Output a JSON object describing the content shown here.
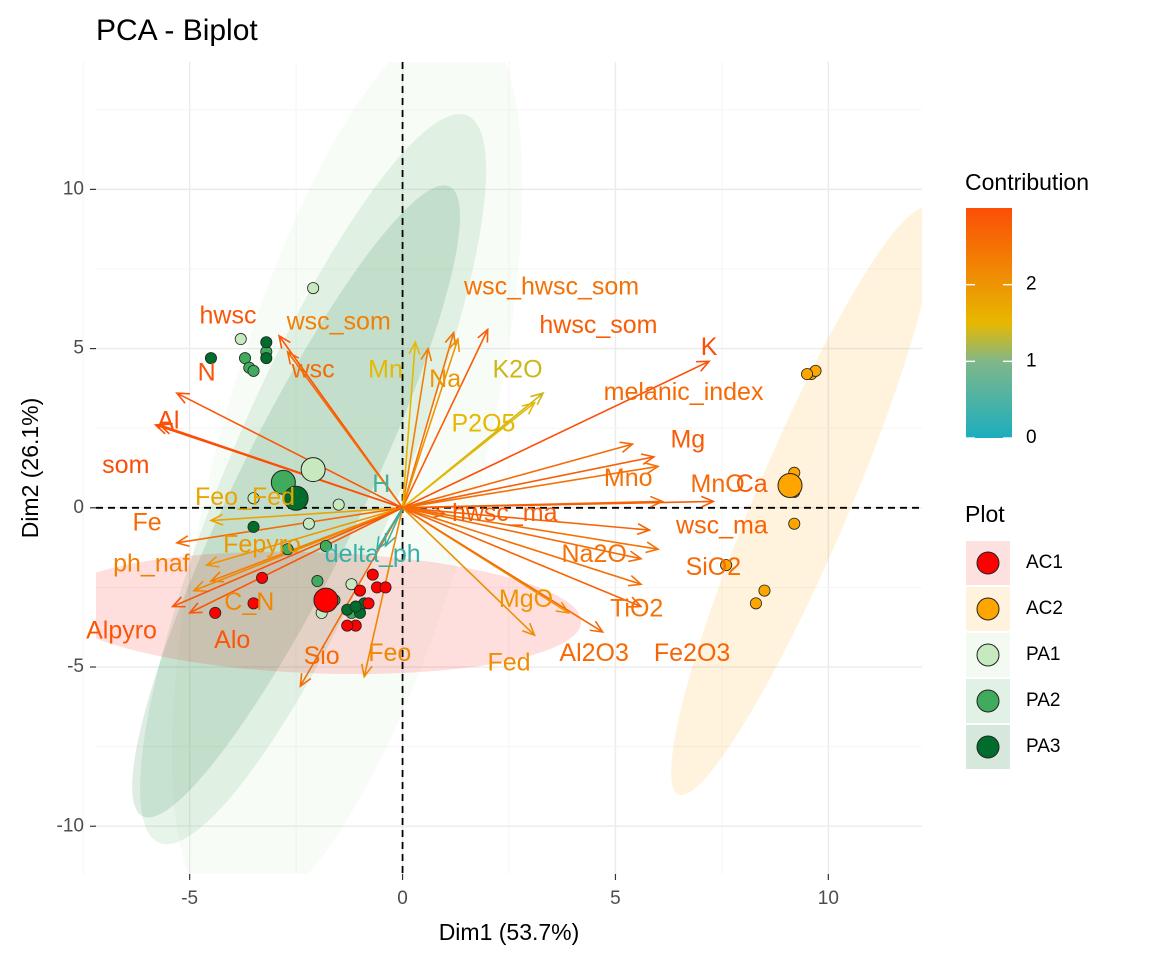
{
  "chart_data": {
    "type": "scatter",
    "title": "PCA - Biplot",
    "xlabel": "Dim1 (53.7%)",
    "ylabel": "Dim2 (26.1%)",
    "xlim": [
      -7.2,
      12.2
    ],
    "ylim": [
      -11.5,
      14
    ],
    "xticks": [
      -5,
      0,
      5,
      10
    ],
    "yticks": [
      -10,
      -5,
      0,
      5,
      10
    ],
    "grid": true,
    "legend_position": "right",
    "contribution_legend": {
      "title": "Contribution",
      "range": [
        0,
        3
      ],
      "ticks": [
        0,
        1,
        2
      ],
      "colors": [
        "#1BAEBF",
        "#E7B800",
        "#FC4E07"
      ]
    },
    "plot_legend": {
      "title": "Plot",
      "entries": [
        {
          "label": "AC1",
          "color": "#FF0000",
          "fill": "#FDE0E0"
        },
        {
          "label": "AC2",
          "color": "#FFA500",
          "fill": "#FFF3DD"
        },
        {
          "label": "PA1",
          "color": "#C7E9C0",
          "fill": "#F3FAF2"
        },
        {
          "label": "PA2",
          "color": "#41AB5D",
          "fill": "#E2F1E5"
        },
        {
          "label": "PA3",
          "color": "#006D2C",
          "fill": "#D6E8DC"
        }
      ]
    },
    "ellipses": [
      {
        "group": "PA1",
        "center": [
          -1.3,
          1.2
        ],
        "rx": 3.1,
        "ry": 14.6,
        "angle": 15
      },
      {
        "group": "PA2",
        "center": [
          -2.1,
          0.9
        ],
        "rx": 2.0,
        "ry": 12.4,
        "angle": 23
      },
      {
        "group": "PA3",
        "center": [
          -2.5,
          0.2
        ],
        "rx": 1.5,
        "ry": 11.0,
        "angle": 26
      },
      {
        "group": "AC1",
        "center": [
          -2.0,
          -3.3
        ],
        "rx": 6.2,
        "ry": 1.9,
        "angle": 2
      },
      {
        "group": "AC2",
        "center": [
          9.4,
          0.2
        ],
        "rx": 1.1,
        "ry": 10.0,
        "angle": 23
      }
    ],
    "points": [
      {
        "group": "PA1",
        "x": -2.1,
        "y": 6.9
      },
      {
        "group": "PA1",
        "x": -3.8,
        "y": 5.3
      },
      {
        "group": "PA1",
        "x": -1.5,
        "y": 0.1
      },
      {
        "group": "PA1",
        "x": -2.2,
        "y": -0.5
      },
      {
        "group": "PA1",
        "x": -1.2,
        "y": -2.4
      },
      {
        "group": "PA1",
        "x": -3.5,
        "y": 0.3
      },
      {
        "group": "PA1",
        "x": -1.9,
        "y": -3.3
      },
      {
        "group": "PA2",
        "x": -3.7,
        "y": 4.7
      },
      {
        "group": "PA2",
        "x": -3.6,
        "y": 4.4
      },
      {
        "group": "PA2",
        "x": -3.5,
        "y": 4.3
      },
      {
        "group": "PA2",
        "x": -3.2,
        "y": 4.9
      },
      {
        "group": "PA2",
        "x": -1.8,
        "y": -1.2
      },
      {
        "group": "PA2",
        "x": -2.0,
        "y": -2.3
      },
      {
        "group": "PA2",
        "x": -2.7,
        "y": -1.3
      },
      {
        "group": "PA2",
        "x": -1.6,
        "y": -2.9
      },
      {
        "group": "PA2",
        "x": -1.2,
        "y": -3.3
      },
      {
        "group": "PA3",
        "x": -4.5,
        "y": 4.7
      },
      {
        "group": "PA3",
        "x": -3.2,
        "y": 5.2
      },
      {
        "group": "PA3",
        "x": -3.2,
        "y": 4.7
      },
      {
        "group": "PA3",
        "x": -3.5,
        "y": -0.6
      },
      {
        "group": "PA3",
        "x": -1.3,
        "y": -3.2
      },
      {
        "group": "PA3",
        "x": -1.0,
        "y": -3.3
      },
      {
        "group": "PA3",
        "x": -0.9,
        "y": -3.0
      },
      {
        "group": "PA3",
        "x": -1.1,
        "y": -3.1
      },
      {
        "group": "AC1",
        "x": -4.4,
        "y": -3.3
      },
      {
        "group": "AC1",
        "x": -3.3,
        "y": -2.2
      },
      {
        "group": "AC1",
        "x": -3.5,
        "y": -3.0
      },
      {
        "group": "AC1",
        "x": -0.7,
        "y": -2.1
      },
      {
        "group": "AC1",
        "x": -0.6,
        "y": -2.5
      },
      {
        "group": "AC1",
        "x": -0.4,
        "y": -2.5
      },
      {
        "group": "AC1",
        "x": -0.8,
        "y": -3.0
      },
      {
        "group": "AC1",
        "x": -1.0,
        "y": -2.6
      },
      {
        "group": "AC1",
        "x": -1.1,
        "y": -3.7
      },
      {
        "group": "AC1",
        "x": -1.3,
        "y": -3.7
      },
      {
        "group": "AC2",
        "x": 9.6,
        "y": 4.2
      },
      {
        "group": "AC2",
        "x": 9.7,
        "y": 4.3
      },
      {
        "group": "AC2",
        "x": 9.5,
        "y": 4.2
      },
      {
        "group": "AC2",
        "x": 9.2,
        "y": 1.1
      },
      {
        "group": "AC2",
        "x": 9.2,
        "y": 0.5
      },
      {
        "group": "AC2",
        "x": 9.0,
        "y": 0.8
      },
      {
        "group": "AC2",
        "x": 9.2,
        "y": -0.5
      },
      {
        "group": "AC2",
        "x": 7.6,
        "y": -1.8
      },
      {
        "group": "AC2",
        "x": 8.5,
        "y": -2.6
      },
      {
        "group": "AC2",
        "x": 8.3,
        "y": -3.0
      }
    ],
    "centroids": [
      {
        "group": "PA1",
        "x": -2.1,
        "y": 1.2
      },
      {
        "group": "PA2",
        "x": -2.8,
        "y": 0.8
      },
      {
        "group": "PA3",
        "x": -2.5,
        "y": 0.3
      },
      {
        "group": "AC1",
        "x": -1.8,
        "y": -2.9
      },
      {
        "group": "AC2",
        "x": 9.1,
        "y": 0.7
      }
    ],
    "variables": [
      {
        "name": "wsc_hwsc_som",
        "x": 1.2,
        "y": 5.5,
        "contrib": 2.5,
        "lx": 3.5,
        "ly": 6.9
      },
      {
        "name": "hwsc_som",
        "x": 2.0,
        "y": 5.6,
        "contrib": 2.8,
        "lx": 4.6,
        "ly": 5.7
      },
      {
        "name": "wsc_som",
        "x": 0.6,
        "y": 5.0,
        "contrib": 2.3,
        "lx": -1.5,
        "ly": 5.8
      },
      {
        "name": "Mn",
        "x": 0.3,
        "y": 5.2,
        "contrib": 1.5,
        "lx": -0.4,
        "ly": 4.3
      },
      {
        "name": "Na",
        "x": 1.3,
        "y": 5.3,
        "contrib": 2.0,
        "lx": 1.0,
        "ly": 4.0
      },
      {
        "name": "K2O",
        "x": 3.3,
        "y": 3.6,
        "contrib": 1.3,
        "lx": 2.7,
        "ly": 4.3
      },
      {
        "name": "P2O5",
        "x": 3.1,
        "y": 3.3,
        "contrib": 1.5,
        "lx": 1.9,
        "ly": 2.6
      },
      {
        "name": "K",
        "x": 7.2,
        "y": 4.6,
        "contrib": 3.0,
        "lx": 7.2,
        "ly": 5.0
      },
      {
        "name": "melanic_index",
        "x": 5.4,
        "y": 2.0,
        "contrib": 2.6,
        "lx": 6.6,
        "ly": 3.6
      },
      {
        "name": "Mg",
        "x": 5.9,
        "y": 1.6,
        "contrib": 2.8,
        "lx": 6.7,
        "ly": 2.1
      },
      {
        "name": "Mno",
        "x": 6.0,
        "y": 1.3,
        "contrib": 2.5,
        "lx": 5.3,
        "ly": 0.9
      },
      {
        "name": "MnO",
        "x": 6.1,
        "y": 0.2,
        "contrib": 2.6,
        "lx": 7.4,
        "ly": 0.7
      },
      {
        "name": "Ca",
        "x": 7.3,
        "y": 0.2,
        "contrib": 2.8,
        "lx": 8.2,
        "ly": 0.7
      },
      {
        "name": "hwsc_ma",
        "x": 1.0,
        "y": -0.2,
        "contrib": 2.8,
        "lx": 2.4,
        "ly": -0.2
      },
      {
        "name": "wsc_ma",
        "x": 5.8,
        "y": -0.7,
        "contrib": 2.7,
        "lx": 7.5,
        "ly": -0.6
      },
      {
        "name": "Na2O",
        "x": 6.0,
        "y": -1.3,
        "contrib": 2.5,
        "lx": 4.5,
        "ly": -1.5
      },
      {
        "name": "SiO2",
        "x": 5.6,
        "y": -1.6,
        "contrib": 2.6,
        "lx": 7.3,
        "ly": -1.9
      },
      {
        "name": "TiO2",
        "x": 5.6,
        "y": -2.4,
        "contrib": 2.5,
        "lx": 5.5,
        "ly": -3.2
      },
      {
        "name": "MgO",
        "x": 3.9,
        "y": -3.3,
        "contrib": 2.0,
        "lx": 2.9,
        "ly": -2.9
      },
      {
        "name": "Fe2O3",
        "x": 5.6,
        "y": -3.1,
        "contrib": 2.7,
        "lx": 6.8,
        "ly": -4.6
      },
      {
        "name": "Al2O3",
        "x": 4.7,
        "y": -3.9,
        "contrib": 2.6,
        "lx": 4.5,
        "ly": -4.6
      },
      {
        "name": "Fed",
        "x": 3.1,
        "y": -4.0,
        "contrib": 2.1,
        "lx": 2.5,
        "ly": -4.9
      },
      {
        "name": "Feo",
        "x": -0.9,
        "y": -5.3,
        "contrib": 2.2,
        "lx": -0.3,
        "ly": -4.6
      },
      {
        "name": "Sio",
        "x": -2.4,
        "y": -5.6,
        "contrib": 2.6,
        "lx": -1.9,
        "ly": -4.7
      },
      {
        "name": "H",
        "x": -0.4,
        "y": -1.2,
        "contrib": 0.3,
        "lx": -0.5,
        "ly": 0.7
      },
      {
        "name": "delta_ph",
        "x": -0.6,
        "y": -1.3,
        "contrib": 0.2,
        "lx": -0.7,
        "ly": -1.5
      },
      {
        "name": "hwsc",
        "x": -2.9,
        "y": 5.4,
        "contrib": 2.9,
        "lx": -4.1,
        "ly": 6.0
      },
      {
        "name": "wsc",
        "x": -2.7,
        "y": 4.9,
        "contrib": 2.6,
        "lx": -2.1,
        "ly": 4.3
      },
      {
        "name": "N",
        "x": -5.3,
        "y": 3.6,
        "contrib": 2.9,
        "lx": -4.6,
        "ly": 4.2
      },
      {
        "name": "Al",
        "x": -5.7,
        "y": 2.6,
        "contrib": 3.0,
        "lx": -5.5,
        "ly": 2.7
      },
      {
        "name": "som",
        "x": -5.8,
        "y": 2.6,
        "contrib": 3.0,
        "lx": -6.5,
        "ly": 1.3
      },
      {
        "name": "Feo_Fed",
        "x": -4.5,
        "y": -0.4,
        "contrib": 1.8,
        "lx": -3.7,
        "ly": 0.3
      },
      {
        "name": "Fe",
        "x": -5.3,
        "y": -1.1,
        "contrib": 2.6,
        "lx": -6.0,
        "ly": -0.5
      },
      {
        "name": "Fepyro",
        "x": -4.6,
        "y": -1.8,
        "contrib": 2.0,
        "lx": -3.3,
        "ly": -1.2
      },
      {
        "name": "ph_naf",
        "x": -4.5,
        "y": -2.3,
        "contrib": 2.3,
        "lx": -5.9,
        "ly": -1.8
      },
      {
        "name": "C_N",
        "x": -4.9,
        "y": -2.6,
        "contrib": 2.2,
        "lx": -3.6,
        "ly": -3.0
      },
      {
        "name": "Alpyro",
        "x": -5.4,
        "y": -3.1,
        "contrib": 2.9,
        "lx": -6.6,
        "ly": -3.9
      },
      {
        "name": "Alo",
        "x": -5.0,
        "y": -3.3,
        "contrib": 2.9,
        "lx": -4.0,
        "ly": -4.2
      }
    ]
  }
}
